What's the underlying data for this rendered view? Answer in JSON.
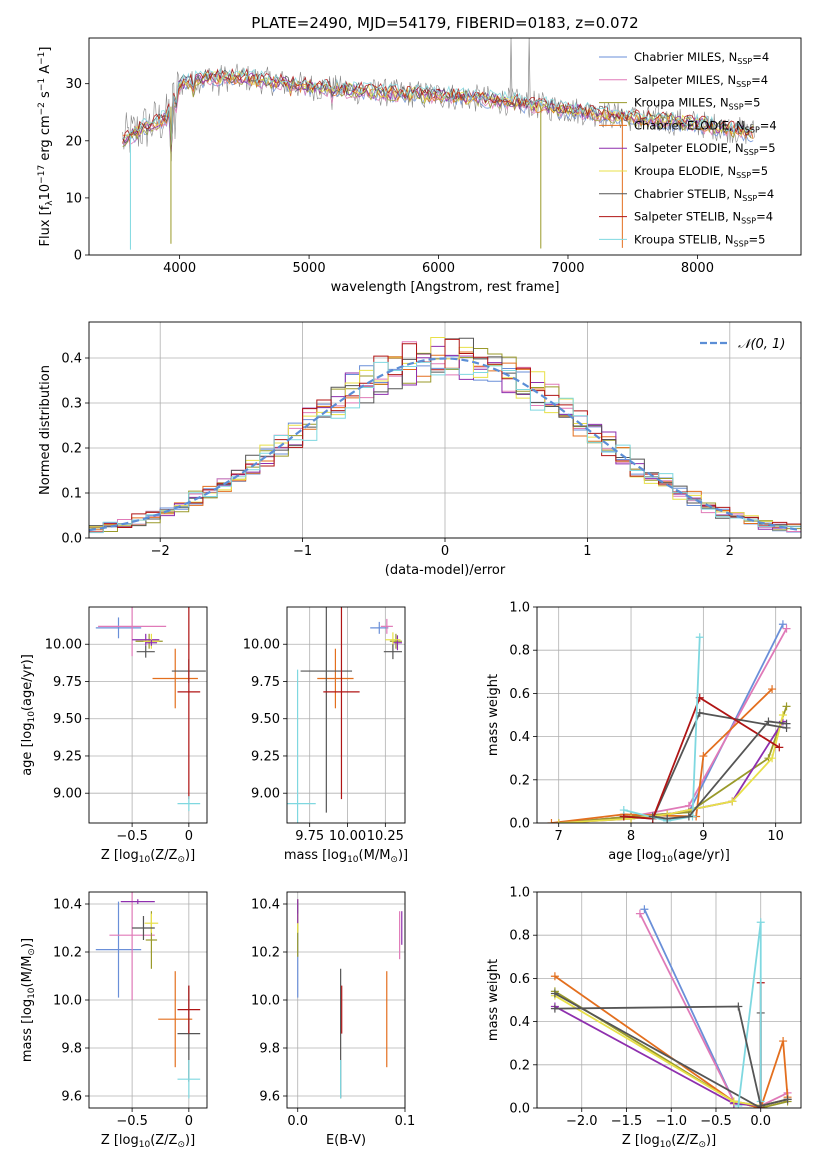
{
  "figure_title": "PLATE=2490, MJD=54179, FIBERID=0183, z=0.072",
  "colors": {
    "Chabrier MILES": "#6a8fd8",
    "Salpeter MILES": "#e07ab8",
    "Kroupa MILES": "#9a9a2a",
    "Chabrier ELODIE": "#e36f1e",
    "Salpeter ELODIE": "#8e2fae",
    "Kroupa ELODIE": "#e8e048",
    "Chabrier STELIB": "#555555",
    "Salpeter STELIB": "#b01515",
    "Kroupa STELIB": "#7fd8e0",
    "data": "#888888",
    "normal": "#5b8ed6"
  },
  "chart_data": [
    {
      "type": "line",
      "title": "PLATE=2490, MJD=54179, FIBERID=0183, z=0.072",
      "xlabel": "wavelength [Angstrom, rest frame]",
      "ylabel": "Flux [f",
      "ylabel_sub": "λ",
      "ylabel_rest": "10",
      "ylabel_sup": "−17",
      "ylabel_units": " erg cm",
      "ylabel_sup2": "−2",
      "ylabel_units2": " s",
      "ylabel_sup3": "−1",
      "ylabel_units3": " A",
      "ylabel_sup4": "−1",
      "ylabel_close": "]",
      "xlim": [
        3300,
        8800
      ],
      "ylim": [
        0,
        38
      ],
      "xticks": [
        4000,
        5000,
        6000,
        7000,
        8000
      ],
      "yticks": [
        0,
        10,
        20,
        30
      ],
      "legend_position": "top-right",
      "series": [
        {
          "name": "Chabrier MILES",
          "nssp": "4"
        },
        {
          "name": "Salpeter MILES",
          "nssp": "4"
        },
        {
          "name": "Kroupa MILES",
          "nssp": "5"
        },
        {
          "name": "Chabrier ELODIE",
          "nssp": "4"
        },
        {
          "name": "Salpeter ELODIE",
          "nssp": "5"
        },
        {
          "name": "Kroupa ELODIE",
          "nssp": "5"
        },
        {
          "name": "Chabrier STELIB",
          "nssp": "4"
        },
        {
          "name": "Salpeter STELIB",
          "nssp": "4"
        },
        {
          "name": "Kroupa STELIB",
          "nssp": "5"
        }
      ],
      "legend_nssp_label": "N",
      "legend_nssp_sub": "SSP",
      "continuum": {
        "x": [
          3550,
          3700,
          3900,
          4000,
          4200,
          4500,
          5000,
          5500,
          6000,
          6500,
          7000,
          7500,
          8000,
          8400
        ],
        "y": [
          20,
          22,
          24,
          30,
          31,
          31,
          29.5,
          28.5,
          28,
          27,
          25.5,
          24,
          23,
          21.5
        ]
      },
      "features": [
        {
          "x": 3620,
          "depth": 20,
          "series": "Kroupa STELIB"
        },
        {
          "x": 3933,
          "depth": 24,
          "series": "Kroupa MILES"
        },
        {
          "x": 6790,
          "depth": 25,
          "series": "Kroupa MILES"
        },
        {
          "x": 7420,
          "depth": 23,
          "series": "Chabrier ELODIE"
        },
        {
          "x": 6560,
          "height": 38,
          "series": "data"
        },
        {
          "x": 6700,
          "height": 38,
          "series": "data"
        }
      ]
    },
    {
      "type": "line",
      "xlabel": "(data-model)/error",
      "ylabel": "Normed distribution",
      "xlim": [
        -2.5,
        2.5
      ],
      "ylim": [
        0,
        0.48
      ],
      "xticks": [
        -2,
        -1,
        0,
        1,
        2
      ],
      "yticks": [
        0.0,
        0.1,
        0.2,
        0.3,
        0.4
      ],
      "legend": "𝒩(0, 1)",
      "legend_position": "top-right",
      "bin_width": 0.1
    },
    {
      "type": "scatter",
      "xlabel": "Z [log",
      "xlabel_sub": "10",
      "xlabel_rest": "(Z/Z",
      "xlabel_sub2": "⊙",
      "xlabel_close": ")]",
      "ylabel": "age  [log",
      "ylabel_sub": "10",
      "ylabel_rest": "(age/yr)]",
      "xlim": [
        -0.88,
        0.16
      ],
      "ylim": [
        8.8,
        10.25
      ],
      "xticks": [
        -0.5,
        0.0
      ],
      "yticks": [
        9.0,
        9.25,
        9.5,
        9.75,
        10.0
      ],
      "points": [
        {
          "series": "Chabrier MILES",
          "x": -0.62,
          "xerr": 0.2,
          "y": 10.11,
          "yerr": 0.07
        },
        {
          "series": "Salpeter MILES",
          "x": -0.5,
          "xerr": 0.3,
          "y": 10.12,
          "yerr": 0.2
        },
        {
          "series": "Kroupa MILES",
          "x": -0.35,
          "xerr": 0.12,
          "y": 10.02,
          "yerr": 0.05
        },
        {
          "series": "Chabrier ELODIE",
          "x": -0.12,
          "xerr": 0.2,
          "y": 9.77,
          "yerr": 0.2
        },
        {
          "series": "Salpeter ELODIE",
          "x": -0.38,
          "xerr": 0.12,
          "y": 10.03,
          "yerr": 0.04
        },
        {
          "series": "Kroupa ELODIE",
          "x": -0.33,
          "xerr": 0.07,
          "y": 10.02,
          "yerr": 0.05
        },
        {
          "series": "Chabrier STELIB",
          "x": 0.0,
          "xerr": 0.15,
          "y": 9.82,
          "yerr": 0.08
        },
        {
          "series": "Salpeter STELIB",
          "x": 0.0,
          "xerr": 0.1,
          "y": 9.68,
          "yerr": 0.72
        },
        {
          "series": "Kroupa STELIB",
          "x": 0.0,
          "xerr": 0.1,
          "y": 8.93,
          "yerr": 0.05
        },
        {
          "series": "Salpeter ELODIE",
          "x": -0.33,
          "xerr": 0.05,
          "y": 10.01,
          "yerr": 0.02
        },
        {
          "series": "Chabrier STELIB",
          "x": -0.38,
          "xerr": 0.08,
          "y": 9.95,
          "yerr": 0.04
        }
      ]
    },
    {
      "type": "scatter",
      "xlabel": "mass [log",
      "xlabel_sub": "10",
      "xlabel_rest": "(M/M",
      "xlabel_sub2": "⊙",
      "xlabel_close": ")]",
      "xlim": [
        9.6,
        10.38
      ],
      "ylim": [
        8.8,
        10.25
      ],
      "xticks": [
        9.75,
        10.0,
        10.25
      ],
      "xtick_labels": [
        "9.75",
        "10.00",
        "10.25"
      ],
      "yticks": [
        9.0,
        9.25,
        9.5,
        9.75,
        10.0
      ],
      "points": [
        {
          "series": "Chabrier MILES",
          "x": 10.21,
          "xerr": 0.06,
          "y": 10.11,
          "yerr": 0.04
        },
        {
          "series": "Salpeter MILES",
          "x": 10.26,
          "xerr": 0.04,
          "y": 10.12,
          "yerr": 0.05
        },
        {
          "series": "Kroupa MILES",
          "x": 10.32,
          "xerr": 0.04,
          "y": 10.02,
          "yerr": 0.05
        },
        {
          "series": "Chabrier ELODIE",
          "x": 9.92,
          "xerr": 0.12,
          "y": 9.77,
          "yerr": 0.2
        },
        {
          "series": "Salpeter ELODIE",
          "x": 10.33,
          "xerr": 0.03,
          "y": 10.01,
          "yerr": 0.05
        },
        {
          "series": "Kroupa ELODIE",
          "x": 10.3,
          "xerr": 0.05,
          "y": 10.03,
          "yerr": 0.05
        },
        {
          "series": "Chabrier STELIB",
          "x": 9.86,
          "xerr": 0.17,
          "y": 9.82,
          "yerr": 0.95
        },
        {
          "series": "Salpeter STELIB",
          "x": 9.96,
          "xerr": 0.12,
          "y": 9.68,
          "yerr": 0.72
        },
        {
          "series": "Kroupa STELIB",
          "x": 9.67,
          "xerr": 0.12,
          "y": 8.93,
          "yerr": 0.9
        },
        {
          "series": "Chabrier STELIB",
          "x": 10.3,
          "xerr": 0.06,
          "y": 9.95,
          "yerr": 0.05
        }
      ]
    },
    {
      "type": "line",
      "xlabel": "age  [log",
      "xlabel_sub": "10",
      "xlabel_rest": "(age/yr)]",
      "ylabel": "mass weight",
      "xlim": [
        6.7,
        10.35
      ],
      "ylim": [
        0,
        1.0
      ],
      "xticks": [
        7,
        8,
        9,
        10
      ],
      "yticks": [
        0.0,
        0.2,
        0.4,
        0.6,
        0.8,
        1.0
      ],
      "series": [
        {
          "name": "Chabrier MILES",
          "x": [
            7.0,
            8.0,
            8.8,
            10.1
          ],
          "y": [
            0.0,
            0.03,
            0.05,
            0.92
          ]
        },
        {
          "name": "Salpeter MILES",
          "x": [
            7.0,
            8.0,
            8.8,
            10.15
          ],
          "y": [
            0.0,
            0.03,
            0.08,
            0.9
          ]
        },
        {
          "name": "Kroupa MILES",
          "x": [
            7.0,
            8.0,
            8.8,
            9.9,
            10.15
          ],
          "y": [
            0.0,
            0.03,
            0.05,
            0.3,
            0.54
          ]
        },
        {
          "name": "Chabrier ELODIE",
          "x": [
            6.9,
            7.9,
            8.9,
            9.0,
            9.95
          ],
          "y": [
            0.0,
            0.04,
            0.03,
            0.31,
            0.62
          ]
        },
        {
          "name": "Salpeter ELODIE",
          "x": [
            7.0,
            8.0,
            8.5,
            9.4,
            10.1
          ],
          "y": [
            0.0,
            0.02,
            0.04,
            0.1,
            0.47
          ]
        },
        {
          "name": "Kroupa ELODIE",
          "x": [
            7.0,
            8.0,
            8.5,
            9.4,
            9.95,
            10.1
          ],
          "y": [
            0.0,
            0.02,
            0.04,
            0.1,
            0.3,
            0.5
          ]
        },
        {
          "name": "Chabrier STELIB",
          "x": [
            7.9,
            8.3,
            8.95,
            10.15
          ],
          "y": [
            0.03,
            0.02,
            0.51,
            0.44
          ]
        },
        {
          "name": "Salpeter STELIB",
          "x": [
            7.9,
            8.3,
            8.95,
            10.05
          ],
          "y": [
            0.03,
            0.02,
            0.58,
            0.35
          ]
        },
        {
          "name": "Kroupa STELIB",
          "x": [
            7.9,
            8.5,
            8.85,
            8.95
          ],
          "y": [
            0.06,
            0.01,
            0.03,
            0.86
          ]
        },
        {
          "name": "Chabrier STELIB",
          "x": [
            8.3,
            8.5,
            8.8,
            9.9,
            10.15
          ],
          "y": [
            0.03,
            0.02,
            0.03,
            0.47,
            0.46
          ]
        }
      ]
    },
    {
      "type": "scatter",
      "xlabel": "Z [log",
      "xlabel_sub": "10",
      "xlabel_rest": "(Z/Z",
      "xlabel_sub2": "⊙",
      "xlabel_close": ")]",
      "ylabel": "mass [log",
      "ylabel_sub": "10",
      "ylabel_rest": "(M/M",
      "ylabel_sub2": "⊙",
      "ylabel_close": ")]",
      "xlim": [
        -0.88,
        0.16
      ],
      "ylim": [
        9.55,
        10.45
      ],
      "xticks": [
        -0.5,
        0.0
      ],
      "yticks": [
        9.6,
        9.8,
        10.0,
        10.2,
        10.4
      ],
      "points": [
        {
          "series": "Chabrier MILES",
          "x": -0.62,
          "xerr": 0.2,
          "y": 10.21,
          "yerr": 0.2
        },
        {
          "series": "Salpeter MILES",
          "x": -0.5,
          "xerr": 0.2,
          "y": 10.27,
          "yerr": 0.27
        },
        {
          "series": "Kroupa MILES",
          "x": -0.33,
          "xerr": 0.05,
          "y": 10.25,
          "yerr": 0.12
        },
        {
          "series": "Chabrier ELODIE",
          "x": -0.12,
          "xerr": 0.15,
          "y": 9.92,
          "yerr": 0.2
        },
        {
          "series": "Salpeter ELODIE",
          "x": -0.45,
          "xerr": 0.15,
          "y": 10.41,
          "yerr": 0.01
        },
        {
          "series": "Kroupa ELODIE",
          "x": -0.33,
          "xerr": 0.06,
          "y": 10.32,
          "yerr": 0.04
        },
        {
          "series": "Chabrier STELIB",
          "x": 0.0,
          "xerr": 0.1,
          "y": 9.86,
          "yerr": 0.2
        },
        {
          "series": "Salpeter STELIB",
          "x": 0.0,
          "xerr": 0.1,
          "y": 9.96,
          "yerr": 0.1
        },
        {
          "series": "Kroupa STELIB",
          "x": 0.0,
          "xerr": 0.1,
          "y": 9.67,
          "yerr": 0.08
        },
        {
          "series": "Chabrier STELIB",
          "x": -0.4,
          "xerr": 0.1,
          "y": 10.3,
          "yerr": 0.05
        }
      ]
    },
    {
      "type": "scatter",
      "xlabel": "E(B-V)",
      "xlim": [
        -0.01,
        0.1
      ],
      "ylim": [
        9.55,
        10.45
      ],
      "xticks": [
        0.0,
        0.1
      ],
      "xtick_labels": [
        "0.0",
        "0.1"
      ],
      "yticks": [
        9.6,
        9.8,
        10.0,
        10.2,
        10.4
      ],
      "points": [
        {
          "series": "Chabrier MILES",
          "x": 0.0,
          "y": 10.21,
          "yerr": 0.2
        },
        {
          "series": "Salpeter MILES",
          "x": 0.095,
          "y": 10.27,
          "yerr": 0.1
        },
        {
          "series": "Kroupa MILES",
          "x": 0.0,
          "y": 10.3,
          "yerr": 0.12
        },
        {
          "series": "Chabrier ELODIE",
          "x": 0.083,
          "y": 9.92,
          "yerr": 0.2
        },
        {
          "series": "Salpeter ELODIE",
          "x": 0.097,
          "y": 10.3,
          "yerr": 0.07
        },
        {
          "series": "Kroupa ELODIE",
          "x": 0.0,
          "y": 10.32,
          "yerr": 0.04
        },
        {
          "series": "Chabrier STELIB",
          "x": 0.04,
          "y": 9.86,
          "yerr": 0.27
        },
        {
          "series": "Salpeter STELIB",
          "x": 0.041,
          "y": 9.96,
          "yerr": 0.1
        },
        {
          "series": "Kroupa STELIB",
          "x": 0.04,
          "y": 9.67,
          "yerr": 0.08
        },
        {
          "series": "Salpeter ELODIE",
          "x": 0.0,
          "y": 10.37,
          "yerr": 0.05
        }
      ]
    },
    {
      "type": "line",
      "xlabel": "Z [log",
      "xlabel_sub": "10",
      "xlabel_rest": "(Z/Z",
      "xlabel_sub2": "⊙",
      "xlabel_close": ")]",
      "ylabel": "mass weight",
      "xlim": [
        -2.5,
        0.45
      ],
      "ylim": [
        0,
        1.0
      ],
      "xticks": [
        -2.0,
        -1.5,
        -1.0,
        -0.5,
        0.0
      ],
      "xtick_labels": [
        "−2.0",
        "−1.5",
        "−1.0",
        "−0.5",
        "0.0"
      ],
      "yticks": [
        0.0,
        0.2,
        0.4,
        0.6,
        0.8,
        1.0
      ],
      "series": [
        {
          "name": "Chabrier MILES",
          "x": [
            -1.3,
            -0.3,
            0.0,
            0.3
          ],
          "y": [
            0.92,
            0.03,
            0.01,
            0.04
          ]
        },
        {
          "name": "Salpeter MILES",
          "x": [
            -1.35,
            -0.3,
            0.0,
            0.3
          ],
          "y": [
            0.9,
            0.03,
            0.01,
            0.07
          ]
        },
        {
          "name": "Kroupa MILES",
          "x": [
            -2.3,
            -0.3,
            0.0,
            0.3
          ],
          "y": [
            0.54,
            0.03,
            0.0,
            0.03
          ]
        },
        {
          "name": "Chabrier ELODIE",
          "x": [
            -2.3,
            -0.3,
            0.0,
            0.25,
            0.3
          ],
          "y": [
            0.61,
            0.03,
            0.0,
            0.31,
            0.05
          ]
        },
        {
          "name": "Salpeter ELODIE",
          "x": [
            -2.3,
            -0.3,
            0.0,
            0.3
          ],
          "y": [
            0.47,
            0.02,
            0.01,
            0.04
          ]
        },
        {
          "name": "Kroupa ELODIE",
          "x": [
            -2.3,
            -0.3,
            0.0,
            0.3
          ],
          "y": [
            0.52,
            0.03,
            0.01,
            0.04
          ]
        },
        {
          "name": "Chabrier STELIB",
          "x": [
            -2.3,
            0.0,
            0.0
          ],
          "y": [
            0.53,
            0.0,
            0.44
          ]
        },
        {
          "name": "Salpeter STELIB",
          "x": [
            0.0,
            0.0
          ],
          "y": [
            0.0,
            0.58
          ]
        },
        {
          "name": "Kroupa STELIB",
          "x": [
            -0.25,
            0.0,
            0.0
          ],
          "y": [
            0.01,
            0.86,
            0.03
          ]
        },
        {
          "name": "Chabrier STELIB",
          "x": [
            -2.3,
            -0.25,
            0.0,
            0.3
          ],
          "y": [
            0.46,
            0.47,
            0.01,
            0.04
          ]
        }
      ]
    }
  ]
}
